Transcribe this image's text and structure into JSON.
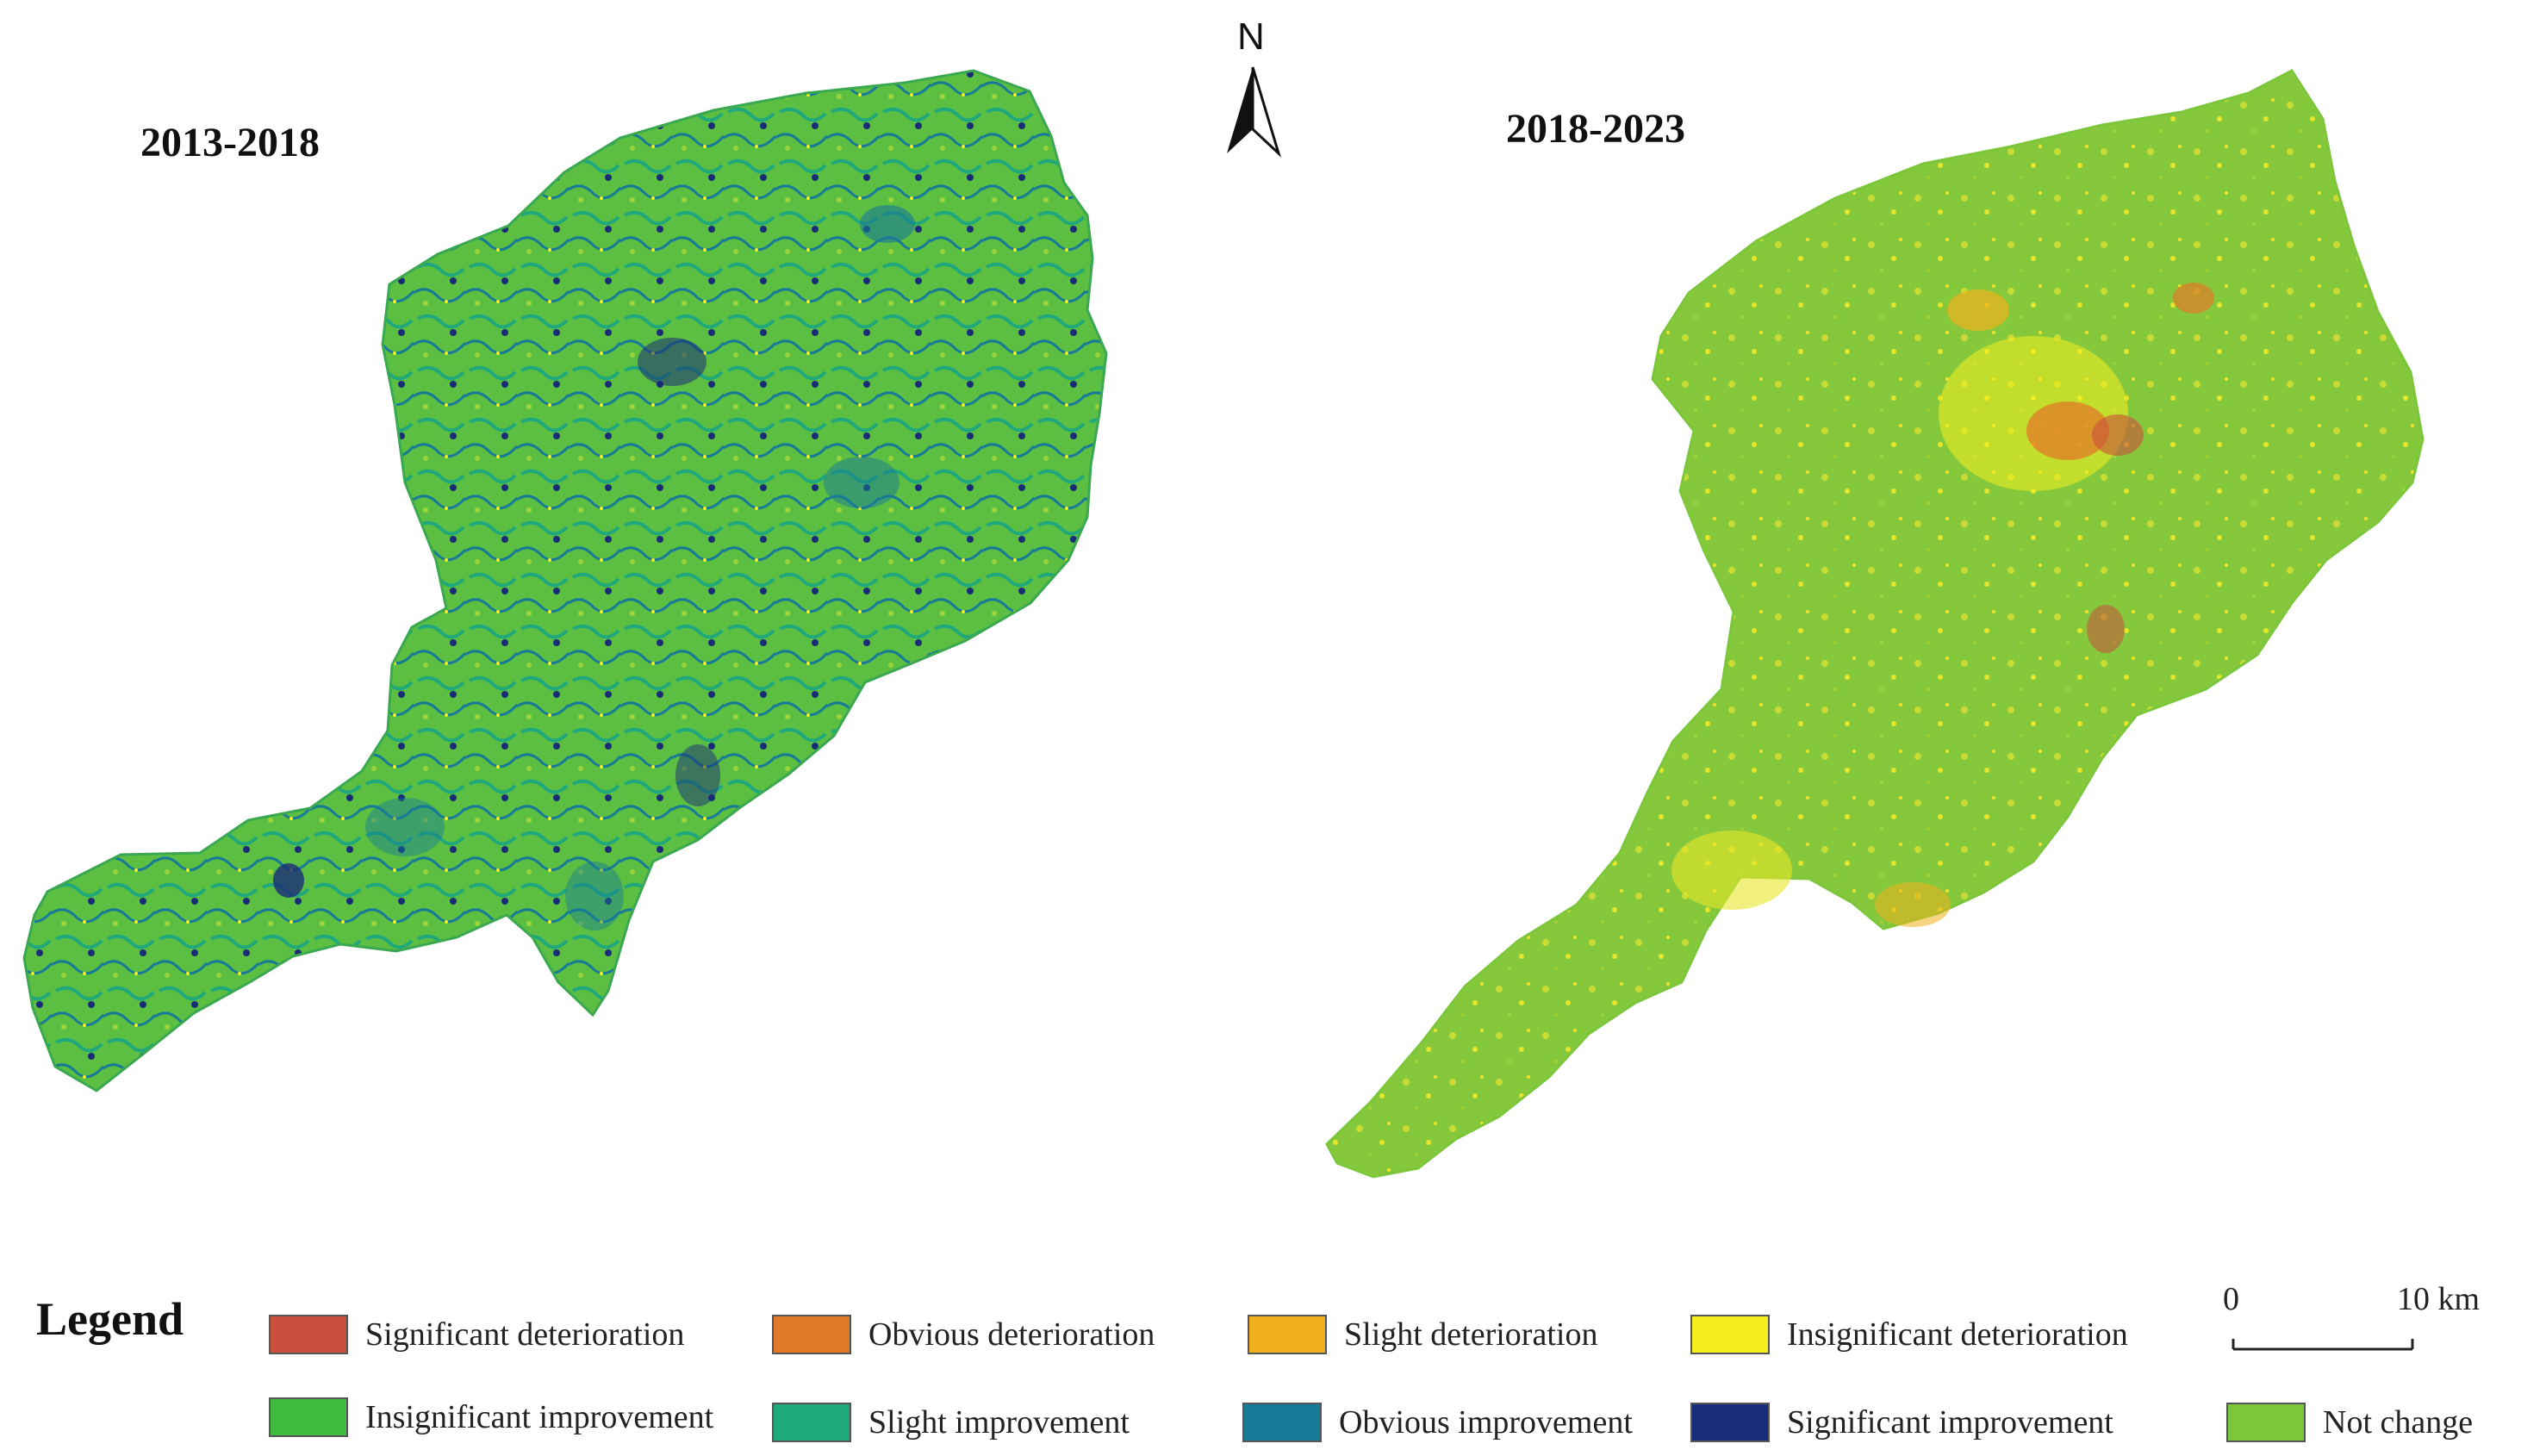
{
  "maps": {
    "left": {
      "title": "2013-2018"
    },
    "right": {
      "title": "2018-2023"
    }
  },
  "north_arrow": {
    "label": "N",
    "icon": "north-arrow-icon"
  },
  "legend": {
    "title": "Legend",
    "items": [
      {
        "label": "Significant deterioration",
        "color": "#c9503c"
      },
      {
        "label": "Obvious deterioration",
        "color": "#e07a28"
      },
      {
        "label": "Slight deterioration",
        "color": "#f0b01c"
      },
      {
        "label": "Insignificant deterioration",
        "color": "#f4ee1e"
      },
      {
        "label": "Insignificant improvement",
        "color": "#3fbb3f"
      },
      {
        "label": "Slight improvement",
        "color": "#1fa87c"
      },
      {
        "label": "Obvious improvement",
        "color": "#177a96"
      },
      {
        "label": "Significant improvement",
        "color": "#1a2c78"
      },
      {
        "label": "Not change",
        "color": "#7cc63c"
      }
    ]
  },
  "scale_bar": {
    "start": "0",
    "end": "10 km"
  }
}
